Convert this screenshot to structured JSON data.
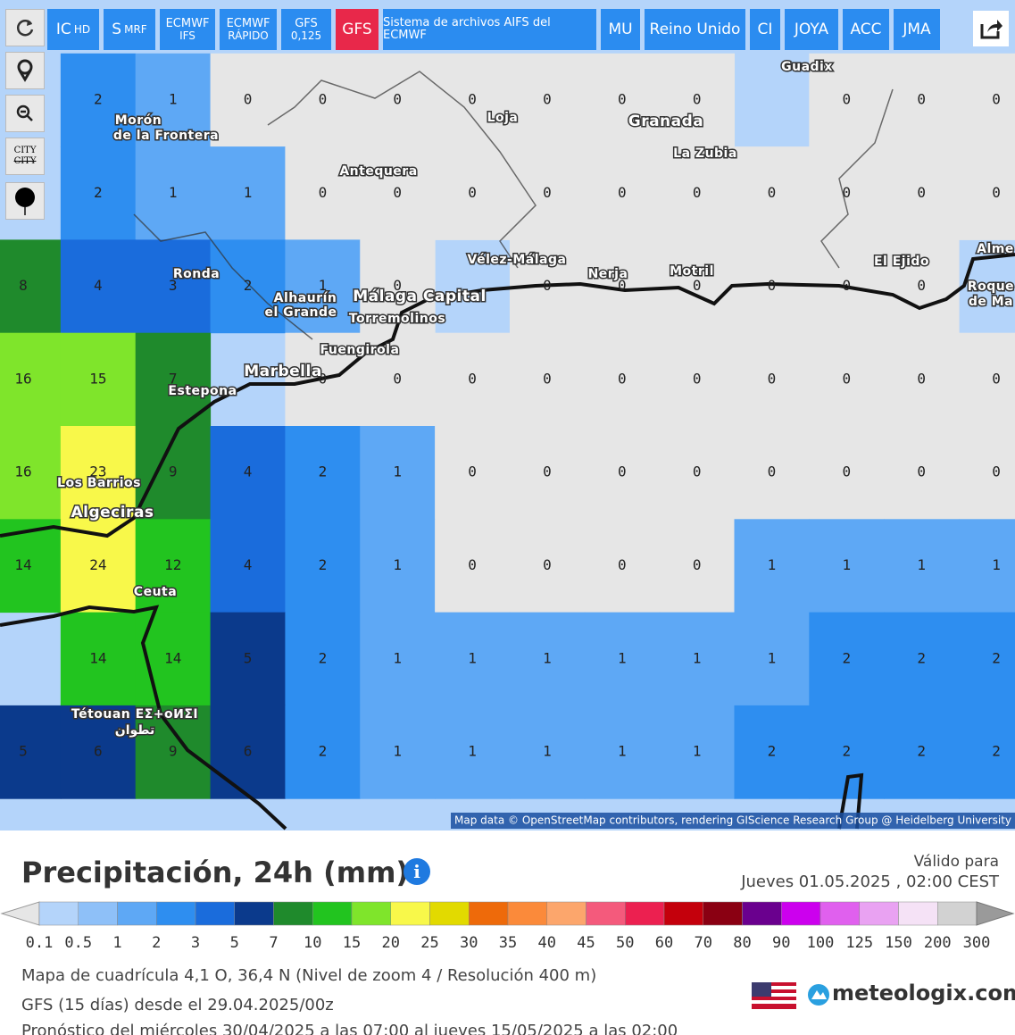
{
  "toolbar": {
    "buttons": [
      {
        "label": "IC",
        "sub": "HD"
      },
      {
        "label": "S",
        "sub": "MRF"
      },
      {
        "label": "ECMWF",
        "sub": "IFS"
      },
      {
        "label": "ECMWF",
        "sub": "RÁPIDO"
      },
      {
        "label": "GFS",
        "sub": "0,125"
      },
      {
        "label": "GFS"
      },
      {
        "label": "Sistema de archivos AIFS del ECMWF"
      },
      {
        "label": "MU"
      },
      {
        "label": "Reino Unido"
      },
      {
        "label": "CI"
      },
      {
        "label": "JOYA"
      },
      {
        "label": "ACC"
      },
      {
        "label": "JMA"
      }
    ],
    "city_toggle": "CITY"
  },
  "map": {
    "places": [
      "Guadix",
      "Loja",
      "Granada",
      "La Zubia",
      "Morón",
      "de la Frontera",
      "Antequera",
      "Vélez-Málaga",
      "Nerja",
      "Motril",
      "El Ejido",
      "Ronda",
      "Alhaurín",
      "el Grande",
      "Málaga Capital",
      "Torremolinos",
      "Fuengirola",
      "Marbella",
      "Estepona",
      "Los Barrios",
      "Algeciras",
      "Ceuta",
      "Tétouan ΕΣ+οⵍΣΙ",
      "تطوان",
      "Alme",
      "Roque",
      "de Ma"
    ],
    "grid": {
      "rows": [
        [
          null,
          2,
          1,
          0,
          0,
          0,
          0,
          0,
          0,
          0,
          null,
          0,
          0,
          0
        ],
        [
          null,
          2,
          1,
          1,
          0,
          0,
          0,
          0,
          0,
          0,
          0,
          0,
          0,
          0
        ],
        [
          8,
          4,
          3,
          2,
          1,
          0,
          null,
          0,
          0,
          0,
          0,
          0,
          0,
          null
        ],
        [
          16,
          15,
          7,
          null,
          0,
          0,
          0,
          0,
          0,
          0,
          0,
          0,
          0,
          0
        ],
        [
          16,
          23,
          9,
          4,
          2,
          1,
          0,
          0,
          0,
          0,
          0,
          0,
          0,
          0
        ],
        [
          14,
          24,
          12,
          4,
          2,
          1,
          0,
          0,
          0,
          0,
          1,
          1,
          1,
          1
        ],
        [
          null,
          14,
          14,
          5,
          2,
          1,
          1,
          1,
          1,
          1,
          1,
          2,
          2,
          2
        ],
        [
          5,
          6,
          9,
          6,
          2,
          1,
          1,
          1,
          1,
          1,
          2,
          2,
          2,
          2
        ]
      ]
    },
    "attribution": "Map data © OpenStreetMap contributors, rendering GIScience Research Group @ Heidelberg University"
  },
  "legend": {
    "title": "Precipitación, 24h (mm)",
    "valid_label": "Válido para",
    "valid_time": "Jueves 01.05.2025 , 02:00 CEST",
    "low_color": "#e6e6e6",
    "high_color": "#9a9a9a",
    "stops": [
      0.1,
      0.5,
      1,
      2,
      3,
      5,
      7,
      10,
      15,
      20,
      25,
      30,
      35,
      40,
      45,
      50,
      60,
      70,
      80,
      90,
      100,
      125,
      150,
      200,
      300
    ],
    "colors": [
      "#b4d4fa",
      "#8ec0f8",
      "#5ea8f5",
      "#2e8ef0",
      "#1a6cdc",
      "#0b3a8c",
      "#1f8a2c",
      "#22c41f",
      "#7fe52b",
      "#f8f84a",
      "#e2da00",
      "#ee6a0a",
      "#fb8a3a",
      "#fca66c",
      "#f45a7c",
      "#ec2050",
      "#c4000c",
      "#8a0012",
      "#6a008e",
      "#cc00ee",
      "#e060ee",
      "#e9a2f2",
      "#f5e2f6",
      "#d2d2d2"
    ]
  },
  "footer": {
    "lines": [
      "Mapa de cuadrícula 4,1 O, 36,4 N (Nivel de zoom 4 / Resolución 400 m)",
      "GFS (15 días) desde el 29.04.2025/00z",
      "Pronóstico del miércoles 30/04/2025 a las 07:00 al jueves 15/05/2025 a las 02:00"
    ],
    "brand": "meteologix.com"
  }
}
